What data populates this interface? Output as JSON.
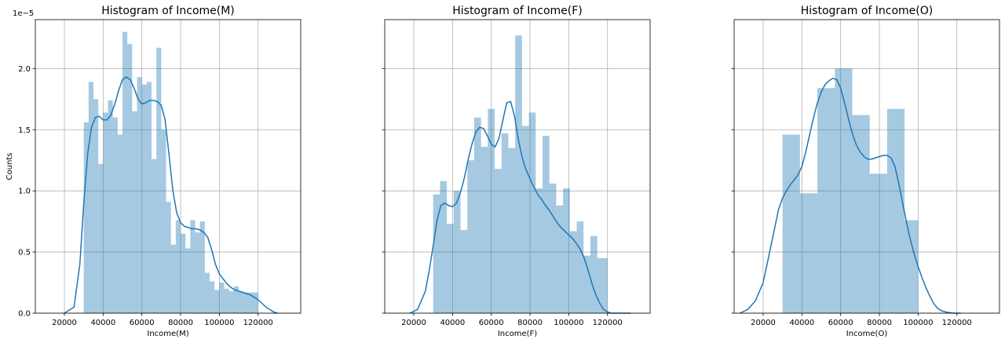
{
  "figure": {
    "y_axis_label": "Counts",
    "y_scale_label": "1e−5",
    "bar_color": "#1f77b4",
    "kde_color": "#1f77b4",
    "grid": true
  },
  "chart_data": [
    {
      "type": "histogram",
      "title": "Histogram of Income(M)",
      "xlabel": "Income(M)",
      "ylabel": "Counts",
      "xlim": [
        5000,
        142000
      ],
      "ylim": [
        0,
        2.4
      ],
      "y_scale": "1e-5",
      "x_ticks": [
        20000,
        40000,
        60000,
        80000,
        100000,
        120000
      ],
      "y_ticks": [
        0.0,
        0.5,
        1.0,
        1.5,
        2.0
      ],
      "y_tick_labels": [
        "0.0",
        "0.5",
        "1.0",
        "1.5",
        "2.0"
      ],
      "bin_edges": [
        30000,
        32500,
        35000,
        37500,
        40000,
        42500,
        45000,
        47500,
        50000,
        52500,
        55000,
        57500,
        60000,
        62500,
        65000,
        67500,
        70000,
        72500,
        75000,
        77500,
        80000,
        82500,
        85000,
        87500,
        90000,
        92500,
        95000,
        97500,
        100000,
        102500,
        105000,
        107500,
        110000,
        112500,
        115000,
        117500,
        120000
      ],
      "values": [
        1.56,
        1.89,
        1.75,
        1.22,
        1.64,
        1.74,
        1.6,
        1.46,
        2.3,
        2.2,
        1.65,
        1.93,
        1.87,
        1.89,
        1.26,
        2.17,
        1.5,
        0.91,
        0.56,
        0.76,
        0.65,
        0.53,
        0.76,
        0.66,
        0.75,
        0.33,
        0.26,
        0.19,
        0.25,
        0.2,
        0.18,
        0.22,
        0.18,
        0.17,
        0.17,
        0.17
      ],
      "kde": {
        "x": [
          20000,
          25000,
          28000,
          30000,
          32000,
          34000,
          36000,
          38000,
          40000,
          42000,
          44000,
          46000,
          48000,
          50000,
          52000,
          54000,
          56000,
          58000,
          60000,
          62000,
          64000,
          66000,
          68000,
          70000,
          72000,
          74000,
          76000,
          78000,
          80000,
          82000,
          84000,
          86000,
          88000,
          90000,
          92000,
          94000,
          96000,
          98000,
          100000,
          102000,
          104000,
          106000,
          108000,
          110000,
          112000,
          114000,
          116000,
          118000,
          120000,
          122000,
          124000,
          126000,
          128000,
          130000
        ],
        "y": [
          0.0,
          0.05,
          0.4,
          0.9,
          1.3,
          1.52,
          1.6,
          1.61,
          1.58,
          1.58,
          1.62,
          1.71,
          1.82,
          1.91,
          1.93,
          1.91,
          1.84,
          1.75,
          1.71,
          1.72,
          1.74,
          1.74,
          1.73,
          1.7,
          1.58,
          1.3,
          1.0,
          0.82,
          0.74,
          0.71,
          0.7,
          0.69,
          0.69,
          0.68,
          0.66,
          0.62,
          0.52,
          0.4,
          0.32,
          0.28,
          0.24,
          0.21,
          0.19,
          0.18,
          0.17,
          0.16,
          0.15,
          0.13,
          0.11,
          0.08,
          0.05,
          0.03,
          0.01,
          0.0
        ]
      }
    },
    {
      "type": "histogram",
      "title": "Histogram of Income(F)",
      "xlabel": "Income(F)",
      "ylabel": "",
      "xlim": [
        5000,
        142000
      ],
      "ylim": [
        0,
        2.4
      ],
      "y_scale": "1e-5",
      "x_ticks": [
        20000,
        40000,
        60000,
        80000,
        100000,
        120000
      ],
      "y_ticks": [
        0.0,
        0.5,
        1.0,
        1.5,
        2.0
      ],
      "y_tick_labels": [
        "",
        "",
        "",
        "",
        ""
      ],
      "bin_edges": [
        30000,
        33529,
        37059,
        40588,
        44118,
        47647,
        51176,
        54706,
        58235,
        61765,
        65294,
        68824,
        72353,
        75882,
        79412,
        82941,
        86471,
        90000,
        93529,
        97059,
        100588,
        104118,
        107647,
        111176,
        114706,
        118235,
        120000
      ],
      "values": [
        0.97,
        1.08,
        0.73,
        1.0,
        0.68,
        1.25,
        1.6,
        1.36,
        1.67,
        1.18,
        1.47,
        1.35,
        2.27,
        1.53,
        1.64,
        1.02,
        1.45,
        1.06,
        0.88,
        1.02,
        0.67,
        0.75,
        0.47,
        0.63,
        0.45,
        0.45
      ],
      "kde": {
        "x": [
          18000,
          22000,
          26000,
          28000,
          30000,
          32000,
          34000,
          36000,
          38000,
          40000,
          42000,
          44000,
          46000,
          48000,
          50000,
          52000,
          54000,
          56000,
          58000,
          60000,
          62000,
          64000,
          66000,
          68000,
          70000,
          72000,
          74000,
          76000,
          78000,
          80000,
          82000,
          84000,
          86000,
          88000,
          90000,
          92000,
          94000,
          96000,
          98000,
          100000,
          102000,
          104000,
          106000,
          108000,
          110000,
          112000,
          114000,
          116000,
          118000,
          120000,
          122000,
          124000,
          126000,
          128000,
          130000,
          132000
        ],
        "y": [
          0.0,
          0.03,
          0.18,
          0.35,
          0.55,
          0.76,
          0.88,
          0.9,
          0.88,
          0.87,
          0.9,
          0.98,
          1.1,
          1.25,
          1.38,
          1.48,
          1.52,
          1.51,
          1.45,
          1.38,
          1.36,
          1.43,
          1.58,
          1.72,
          1.73,
          1.61,
          1.42,
          1.27,
          1.17,
          1.1,
          1.03,
          0.97,
          0.93,
          0.88,
          0.84,
          0.79,
          0.74,
          0.7,
          0.67,
          0.64,
          0.61,
          0.57,
          0.52,
          0.45,
          0.35,
          0.24,
          0.15,
          0.08,
          0.03,
          0.01,
          0.0,
          0.0,
          0.0,
          0.0,
          0.0,
          0.0
        ]
      }
    },
    {
      "type": "histogram",
      "title": "Histogram of Income(O)",
      "xlabel": "Income(O)",
      "ylabel": "",
      "xlim": [
        5000,
        142000
      ],
      "ylim": [
        0,
        2.4
      ],
      "y_scale": "1e-5",
      "x_ticks": [
        20000,
        40000,
        60000,
        80000,
        100000,
        120000
      ],
      "y_ticks": [
        0.0,
        0.5,
        1.0,
        1.5,
        2.0
      ],
      "y_tick_labels": [
        "",
        "",
        "",
        "",
        ""
      ],
      "bin_edges": [
        30000,
        34500,
        39000,
        43500,
        48000,
        52500,
        57000,
        61500,
        66000,
        70500,
        75000,
        79500,
        84000,
        88500,
        93000,
        97500,
        100000
      ],
      "values": [
        1.46,
        1.46,
        0.98,
        0.98,
        1.84,
        1.84,
        2.0,
        2.0,
        1.62,
        1.62,
        1.14,
        1.14,
        1.67,
        1.67,
        0.76,
        0.76
      ],
      "kde": {
        "x": [
          8000,
          12000,
          16000,
          20000,
          24000,
          28000,
          30000,
          32000,
          34000,
          36000,
          38000,
          40000,
          42000,
          44000,
          46000,
          48000,
          50000,
          52000,
          54000,
          56000,
          58000,
          60000,
          62000,
          64000,
          66000,
          68000,
          70000,
          72000,
          74000,
          76000,
          78000,
          80000,
          82000,
          84000,
          86000,
          88000,
          90000,
          92000,
          94000,
          96000,
          98000,
          100000,
          102000,
          104000,
          106000,
          108000,
          110000,
          112000,
          114000,
          118000,
          122000
        ],
        "y": [
          0.0,
          0.03,
          0.1,
          0.25,
          0.55,
          0.85,
          0.94,
          1.0,
          1.05,
          1.09,
          1.13,
          1.2,
          1.32,
          1.46,
          1.6,
          1.72,
          1.81,
          1.87,
          1.9,
          1.92,
          1.91,
          1.84,
          1.72,
          1.59,
          1.47,
          1.38,
          1.32,
          1.28,
          1.26,
          1.26,
          1.27,
          1.28,
          1.29,
          1.29,
          1.27,
          1.2,
          1.06,
          0.9,
          0.74,
          0.6,
          0.48,
          0.38,
          0.29,
          0.21,
          0.14,
          0.08,
          0.04,
          0.02,
          0.01,
          0.0,
          0.0
        ]
      }
    }
  ]
}
